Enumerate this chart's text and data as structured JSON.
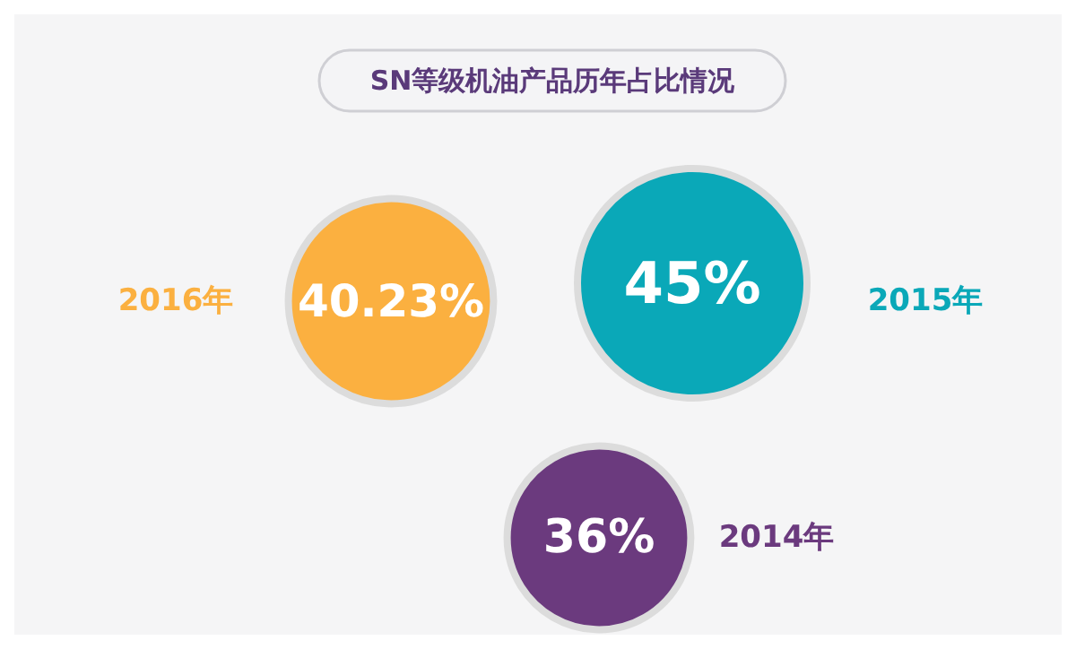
{
  "chart_data": {
    "type": "other",
    "title": "SN等级机油产品历年占比情况",
    "categories": [
      "2016年",
      "2015年",
      "2014年"
    ],
    "values": [
      40.23,
      45,
      36
    ],
    "value_labels": [
      "40.23%",
      "45%",
      "36%"
    ],
    "colors": [
      "#fbb040",
      "#0aa8b8",
      "#6b3a7e"
    ]
  }
}
